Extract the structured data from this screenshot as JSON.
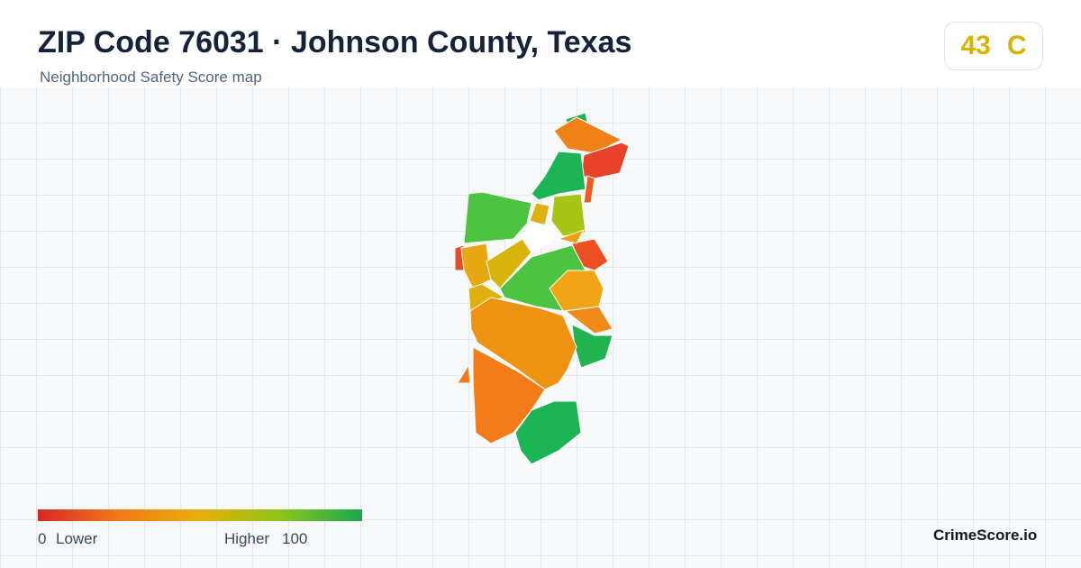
{
  "header": {
    "title": "ZIP Code 76031 · Johnson County, Texas",
    "subtitle": "Neighborhood Safety Score map"
  },
  "badge": {
    "score": "43",
    "grade": "C"
  },
  "legend": {
    "min": "0",
    "min_label": "Lower",
    "max_label": "Higher",
    "max": "100"
  },
  "footer": {
    "brand": "CrimeScore.io"
  }
}
